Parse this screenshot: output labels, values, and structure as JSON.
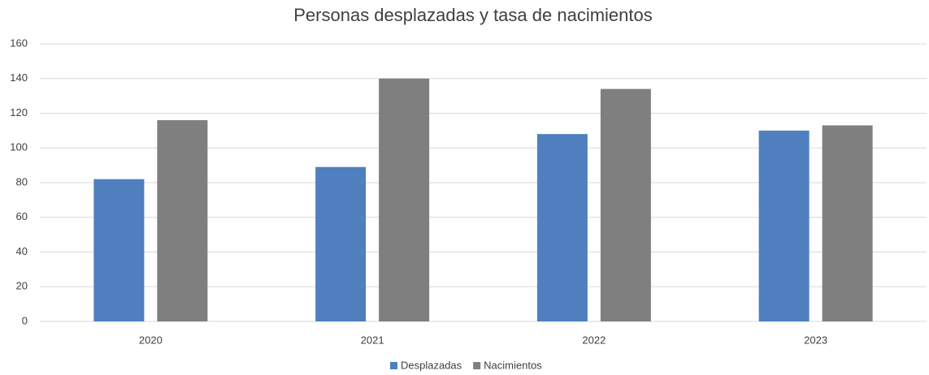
{
  "chart_data": {
    "type": "bar",
    "title": "Personas desplazadas y tasa de nacimientos",
    "categories": [
      "2020",
      "2021",
      "2022",
      "2023"
    ],
    "series": [
      {
        "name": "Desplazadas",
        "color": "#4f7fbf",
        "values": [
          82,
          89,
          108,
          110
        ]
      },
      {
        "name": "Nacimientos",
        "color": "#7f7f7f",
        "values": [
          116,
          140,
          134,
          113
        ]
      }
    ],
    "ylim": [
      0,
      160
    ],
    "yticks": [
      0,
      20,
      40,
      60,
      80,
      100,
      120,
      140,
      160
    ],
    "grid": true,
    "legend": "bottom"
  }
}
